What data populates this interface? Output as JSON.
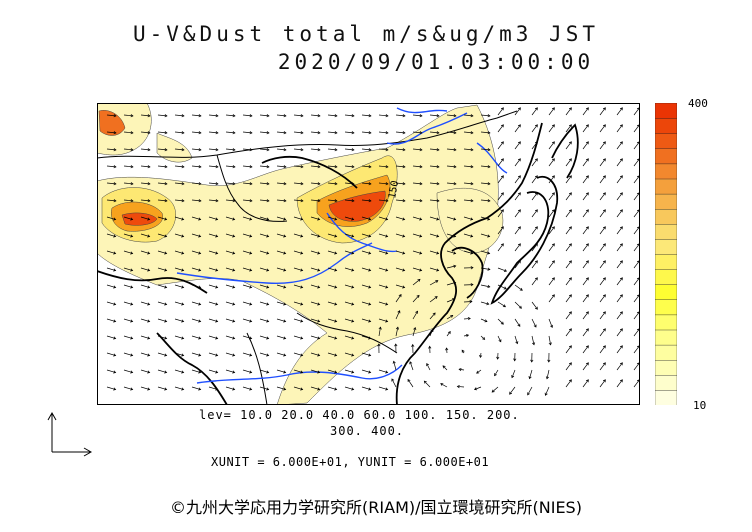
{
  "title": {
    "line1": "U-V&Dust total m/s&ug/m3 JST",
    "line2": "2020/09/01.03:00:00"
  },
  "colorbar": {
    "max_label": "400",
    "min_label": "10",
    "colors": [
      "#fefee0",
      "#fefecc",
      "#fefeb4",
      "#fefea0",
      "#fefe8c",
      "#fefe6e",
      "#fefe4c",
      "#fefe32",
      "#fef84c",
      "#fef064",
      "#fce878",
      "#fadc6e",
      "#f8c85c",
      "#f6b44c",
      "#f4a03c",
      "#f2882e",
      "#f07020",
      "#ee5a14",
      "#ec460a",
      "#ea3404"
    ]
  },
  "levels": {
    "line1": "lev= 10.0 20.0 40.0 60.0 100. 150. 200.",
    "line2": "300. 400."
  },
  "units": "XUNIT = 6.000E+01, YUNIT = 6.000E+01",
  "contour_label": "150",
  "copyright": "©九州大学応用力学研究所(RIAM)/国立環境研究所(NIES)",
  "map_colors": {
    "coast": "#000000",
    "river": "#1f4fff",
    "border": "#000000",
    "dust_low": "#fdf5b8",
    "dust_mid": "#fde873",
    "dust_high": "#f7a21e",
    "dust_peak": "#ee4a0c"
  }
}
